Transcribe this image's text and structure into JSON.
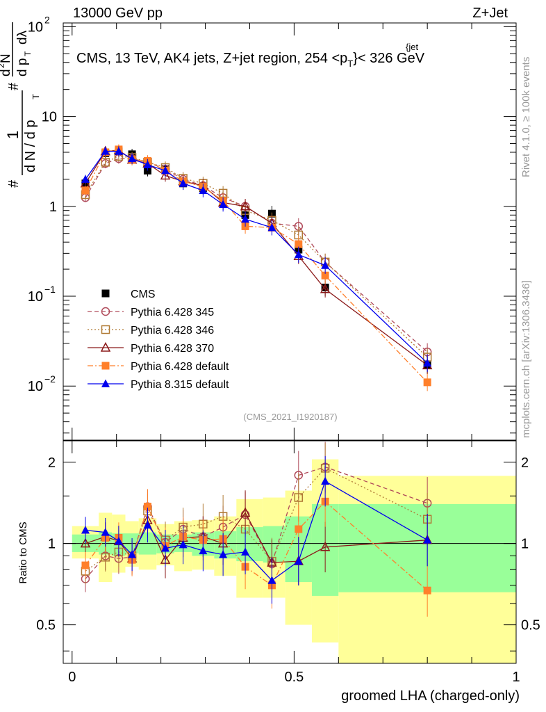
{
  "header": {
    "left": "13000 GeV pp",
    "right": "Z+Jet"
  },
  "side_labels": {
    "rivet": "Rivet 4.1.0, ≥ 100k events",
    "mcplots": "mcplots.cern.ch [arXiv:1306.3436]"
  },
  "chart_data": [
    {
      "type": "scatter",
      "title": "CMS, 13 TeV, AK4 jets, Z+jet region, 254 <p_T^{jet}< 326 GeV",
      "title_main": "CMS, 13 TeV, AK4 jets, Z+jet region, 254 <p",
      "title_sup": "{jet",
      "title_sub": "T",
      "title_end": "}< 326 GeV",
      "ylabel": "#1/dN/dp_T # d^2N/dp_T dλ",
      "ylabel_parts": {
        "hash1": "#",
        "one": "1",
        "dN": "d N / d p",
        "T1": "T",
        "hash2": "#",
        "d2N": "d",
        "two": "2",
        "N": "N",
        "dpT": "d p",
        "T2": "T",
        "dl": "dλ"
      },
      "yscale": "log",
      "ylim": [
        0.0025,
        110
      ],
      "xlim": [
        -0.02,
        1.0
      ],
      "ytick_labels": [
        "10",
        "2",
        "10",
        "1",
        "10",
        "−1",
        "10",
        "−2"
      ],
      "yticks": [
        100,
        10,
        1,
        0.1,
        0.01
      ],
      "ytick_text": [
        "10^2",
        "10",
        "1",
        "10^-1",
        "10^-2"
      ],
      "watermark": "(CMS_2021_I1920187)",
      "x": [
        0.03,
        0.075,
        0.105,
        0.135,
        0.17,
        0.21,
        0.25,
        0.295,
        0.34,
        0.39,
        0.45,
        0.51,
        0.57,
        0.8
      ],
      "series": [
        {
          "name": "CMS",
          "color": "#000000",
          "marker": "square-filled",
          "line": "none",
          "values": [
            1.8,
            3.9,
            4.1,
            3.8,
            2.5,
            2.6,
            1.8,
            1.6,
            1.1,
            0.8,
            0.83,
            0.33,
            0.125,
            0.017
          ]
        },
        {
          "name": "Pythia 6.428 345",
          "color": "#b04a5a",
          "marker": "circle-open",
          "line": "dashed",
          "values": [
            1.25,
            3.0,
            3.4,
            3.4,
            3.1,
            2.6,
            2.0,
            1.7,
            1.25,
            1.0,
            0.65,
            0.6,
            0.24,
            0.024
          ]
        },
        {
          "name": "Pythia 6.428 346",
          "color": "#b07a35",
          "marker": "square-open",
          "line": "dotted",
          "values": [
            1.35,
            3.1,
            3.6,
            3.5,
            3.1,
            2.7,
            2.05,
            1.8,
            1.4,
            0.9,
            0.7,
            0.48,
            0.24,
            0.021
          ]
        },
        {
          "name": "Pythia 6.428 370",
          "color": "#8b1a1a",
          "marker": "triangle-open",
          "line": "solid",
          "values": [
            1.8,
            4.1,
            4.2,
            3.3,
            3.0,
            2.2,
            1.9,
            1.7,
            1.1,
            1.0,
            0.65,
            0.28,
            0.12,
            0.017
          ]
        },
        {
          "name": "Pythia 6.428 default",
          "color": "#ff7f2a",
          "marker": "square-filled",
          "line": "dashdot",
          "values": [
            1.5,
            4.0,
            4.3,
            3.3,
            3.2,
            2.5,
            1.9,
            1.65,
            1.15,
            0.6,
            0.58,
            0.38,
            0.17,
            0.011
          ]
        },
        {
          "name": "Pythia 8.315 default",
          "color": "#0000ee",
          "marker": "triangle-filled",
          "line": "solid",
          "values": [
            2.0,
            4.1,
            4.1,
            3.4,
            2.9,
            2.5,
            1.8,
            1.5,
            1.05,
            0.72,
            0.58,
            0.29,
            0.22,
            0.018
          ]
        }
      ],
      "legend": "lower-left"
    },
    {
      "type": "scatter",
      "ylabel": "Ratio to CMS",
      "xlabel": "groomed LHA (charged-only)",
      "yscale": "log",
      "ylim": [
        0.36,
        2.4
      ],
      "xlim": [
        -0.02,
        1.0
      ],
      "yticks": [
        0.5,
        1,
        2
      ],
      "ytick_labels": [
        "0.5",
        "1",
        "2"
      ],
      "xticks": [
        0,
        0.5,
        1
      ],
      "xtick_labels": [
        "0",
        "0.5",
        "1"
      ],
      "uncertainty_bands": {
        "bin_edges": [
          0.0,
          0.06,
          0.09,
          0.12,
          0.15,
          0.19,
          0.23,
          0.27,
          0.32,
          0.37,
          0.43,
          0.48,
          0.54,
          0.6,
          1.0
        ],
        "green": [
          [
            0.93,
            1.08
          ],
          [
            0.91,
            1.1
          ],
          [
            0.9,
            1.09
          ],
          [
            0.92,
            1.09
          ],
          [
            0.91,
            1.1
          ],
          [
            0.92,
            1.08
          ],
          [
            0.93,
            1.08
          ],
          [
            0.9,
            1.1
          ],
          [
            0.88,
            1.11
          ],
          [
            0.86,
            1.15
          ],
          [
            0.85,
            1.16
          ],
          [
            0.72,
            1.26
          ],
          [
            0.64,
            1.4
          ],
          [
            0.66,
            1.4
          ]
        ],
        "yellow": [
          [
            0.88,
            1.16
          ],
          [
            0.72,
            1.3
          ],
          [
            0.78,
            1.28
          ],
          [
            0.82,
            1.21
          ],
          [
            0.8,
            1.24
          ],
          [
            0.83,
            1.18
          ],
          [
            0.79,
            1.21
          ],
          [
            0.8,
            1.22
          ],
          [
            0.76,
            1.26
          ],
          [
            0.63,
            1.46
          ],
          [
            0.63,
            1.48
          ],
          [
            0.5,
            1.57
          ],
          [
            0.43,
            2.05
          ],
          [
            0.36,
            1.78
          ]
        ]
      },
      "x": [
        0.03,
        0.075,
        0.105,
        0.135,
        0.17,
        0.21,
        0.25,
        0.295,
        0.34,
        0.39,
        0.45,
        0.51,
        0.57,
        0.8
      ],
      "series": [
        {
          "name": "Pythia 6.428 345",
          "color": "#b04a5a",
          "marker": "circle-open",
          "line": "dashed",
          "values": [
            0.74,
            0.9,
            0.88,
            0.89,
            1.37,
            1.01,
            1.13,
            1.06,
            1.15,
            1.28,
            0.84,
            1.79,
            1.92,
            1.41
          ]
        },
        {
          "name": "Pythia 6.428 346",
          "color": "#b07a35",
          "marker": "square-open",
          "line": "dotted",
          "values": [
            0.79,
            0.89,
            0.93,
            0.9,
            1.32,
            1.03,
            1.15,
            1.18,
            1.26,
            1.13,
            0.86,
            1.48,
            1.9,
            1.23
          ]
        },
        {
          "name": "Pythia 6.428 370",
          "color": "#8b1a1a",
          "marker": "triangle-open",
          "line": "solid",
          "values": [
            1.0,
            1.06,
            1.02,
            0.88,
            1.22,
            0.87,
            1.05,
            1.06,
            1.0,
            1.3,
            0.85,
            0.86,
            0.97,
            1.03
          ]
        },
        {
          "name": "Pythia 6.428 default",
          "color": "#ff7f2a",
          "marker": "square-filled",
          "line": "dashdot",
          "values": [
            0.83,
            1.05,
            1.05,
            0.87,
            1.37,
            0.98,
            1.06,
            1.03,
            1.04,
            0.82,
            0.7,
            1.13,
            1.43,
            0.67
          ]
        },
        {
          "name": "Pythia 8.315 default",
          "color": "#0000ee",
          "marker": "triangle-filled",
          "line": "solid",
          "values": [
            1.12,
            1.1,
            1.02,
            0.91,
            1.17,
            0.96,
            0.99,
            0.94,
            0.91,
            0.93,
            0.73,
            0.86,
            1.7,
            1.03
          ]
        }
      ]
    }
  ]
}
